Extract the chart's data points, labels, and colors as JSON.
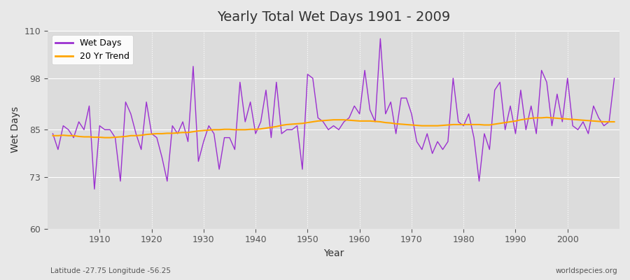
{
  "title": "Yearly Total Wet Days 1901 - 2009",
  "xlabel": "Year",
  "ylabel": "Wet Days",
  "footnote_left": "Latitude -27.75 Longitude -56.25",
  "footnote_right": "worldspecies.org",
  "ylim": [
    60,
    110
  ],
  "yticks": [
    60,
    73,
    85,
    98,
    110
  ],
  "wet_days_color": "#9B30D0",
  "trend_color": "#FFA500",
  "background_color": "#E8E8E8",
  "plot_bg_color": "#DCDCDC",
  "legend_labels": [
    "Wet Days",
    "20 Yr Trend"
  ],
  "years": [
    1901,
    1902,
    1903,
    1904,
    1905,
    1906,
    1907,
    1908,
    1909,
    1910,
    1911,
    1912,
    1913,
    1914,
    1915,
    1916,
    1917,
    1918,
    1919,
    1920,
    1921,
    1922,
    1923,
    1924,
    1925,
    1926,
    1927,
    1928,
    1929,
    1930,
    1931,
    1932,
    1933,
    1934,
    1935,
    1936,
    1937,
    1938,
    1939,
    1940,
    1941,
    1942,
    1943,
    1944,
    1945,
    1946,
    1947,
    1948,
    1949,
    1950,
    1951,
    1952,
    1953,
    1954,
    1955,
    1956,
    1957,
    1958,
    1959,
    1960,
    1961,
    1962,
    1963,
    1964,
    1965,
    1966,
    1967,
    1968,
    1969,
    1970,
    1971,
    1972,
    1973,
    1974,
    1975,
    1976,
    1977,
    1978,
    1979,
    1980,
    1981,
    1982,
    1983,
    1984,
    1985,
    1986,
    1987,
    1988,
    1989,
    1990,
    1991,
    1992,
    1993,
    1994,
    1995,
    1996,
    1997,
    1998,
    1999,
    2000,
    2001,
    2002,
    2003,
    2004,
    2005,
    2006,
    2007,
    2008,
    2009
  ],
  "wet_days": [
    84,
    80,
    86,
    85,
    83,
    87,
    85,
    91,
    70,
    86,
    85,
    85,
    83,
    72,
    92,
    89,
    84,
    80,
    92,
    84,
    83,
    78,
    72,
    86,
    84,
    87,
    82,
    101,
    77,
    82,
    86,
    84,
    75,
    83,
    83,
    80,
    97,
    87,
    92,
    84,
    87,
    95,
    83,
    97,
    84,
    85,
    85,
    86,
    75,
    99,
    98,
    88,
    87,
    85,
    86,
    85,
    87,
    88,
    91,
    89,
    100,
    90,
    87,
    108,
    89,
    92,
    84,
    93,
    93,
    89,
    82,
    80,
    84,
    79,
    82,
    80,
    82,
    98,
    87,
    86,
    89,
    83,
    72,
    84,
    80,
    95,
    97,
    85,
    91,
    84,
    95,
    85,
    91,
    84,
    100,
    97,
    86,
    94,
    87,
    98,
    86,
    85,
    87,
    84,
    91,
    88,
    86,
    87,
    98
  ],
  "trend": [
    83.5,
    83.5,
    83.6,
    83.5,
    83.5,
    83.3,
    83.2,
    83.2,
    83.1,
    83.1,
    83.0,
    83.0,
    83.1,
    83.2,
    83.3,
    83.5,
    83.5,
    83.6,
    83.8,
    83.9,
    84.0,
    84.0,
    84.1,
    84.1,
    84.2,
    84.3,
    84.3,
    84.5,
    84.7,
    84.8,
    84.9,
    85.0,
    85.0,
    85.1,
    85.1,
    85.0,
    85.0,
    85.0,
    85.1,
    85.1,
    85.2,
    85.4,
    85.6,
    85.8,
    86.1,
    86.3,
    86.4,
    86.5,
    86.6,
    86.8,
    87.0,
    87.2,
    87.3,
    87.4,
    87.5,
    87.5,
    87.5,
    87.4,
    87.3,
    87.2,
    87.2,
    87.2,
    87.1,
    87.0,
    86.8,
    86.7,
    86.5,
    86.4,
    86.3,
    86.2,
    86.1,
    86.0,
    86.0,
    86.0,
    86.0,
    86.1,
    86.2,
    86.3,
    86.3,
    86.3,
    86.3,
    86.3,
    86.3,
    86.2,
    86.2,
    86.4,
    86.6,
    86.8,
    87.0,
    87.2,
    87.5,
    87.7,
    87.9,
    88.0,
    88.0,
    88.1,
    88.0,
    87.9,
    87.8,
    87.7,
    87.6,
    87.5,
    87.4,
    87.3,
    87.2,
    87.1,
    87.0,
    87.0,
    87.0
  ]
}
